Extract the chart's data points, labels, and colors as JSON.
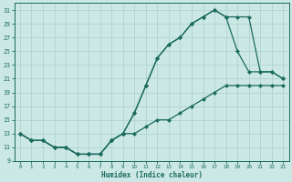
{
  "xlabel": "Humidex (Indice chaleur)",
  "bg_color": "#cce8e5",
  "grid_color": "#aacfcc",
  "line_color": "#1a6b5e",
  "xlim": [
    -0.5,
    23.5
  ],
  "ylim": [
    9,
    32
  ],
  "xticks": [
    0,
    1,
    2,
    3,
    4,
    5,
    6,
    7,
    8,
    9,
    10,
    11,
    12,
    13,
    14,
    15,
    16,
    17,
    18,
    19,
    20,
    21,
    22,
    23
  ],
  "yticks": [
    9,
    11,
    13,
    15,
    17,
    19,
    21,
    23,
    25,
    27,
    29,
    31
  ],
  "curve1_x": [
    0,
    1,
    2,
    3,
    4,
    5,
    6,
    7,
    8,
    9,
    10,
    11,
    12,
    13,
    14,
    15,
    16,
    17,
    18,
    19,
    20,
    21,
    22,
    23
  ],
  "curve1_y": [
    13,
    12,
    12,
    11,
    11,
    10,
    10,
    10,
    12,
    13,
    16,
    20,
    24,
    26,
    27,
    29,
    30,
    31,
    30,
    30,
    30,
    22,
    22,
    21
  ],
  "curve2_x": [
    0,
    1,
    2,
    3,
    4,
    5,
    6,
    7,
    8,
    9,
    10,
    11,
    12,
    13,
    14,
    15,
    16,
    17,
    18,
    19,
    20,
    21,
    22,
    23
  ],
  "curve2_y": [
    13,
    12,
    12,
    11,
    11,
    10,
    10,
    10,
    12,
    13,
    16,
    20,
    24,
    26,
    27,
    29,
    30,
    31,
    30,
    25,
    22,
    22,
    22,
    21
  ],
  "curve3_x": [
    0,
    1,
    2,
    3,
    4,
    5,
    6,
    7,
    8,
    9,
    10,
    11,
    12,
    13,
    14,
    15,
    16,
    17,
    18,
    19,
    20,
    21,
    22,
    23
  ],
  "curve3_y": [
    13,
    12,
    12,
    11,
    11,
    10,
    10,
    10,
    12,
    13,
    13,
    14,
    15,
    15,
    16,
    17,
    18,
    19,
    20,
    20,
    20,
    20,
    20,
    20
  ]
}
